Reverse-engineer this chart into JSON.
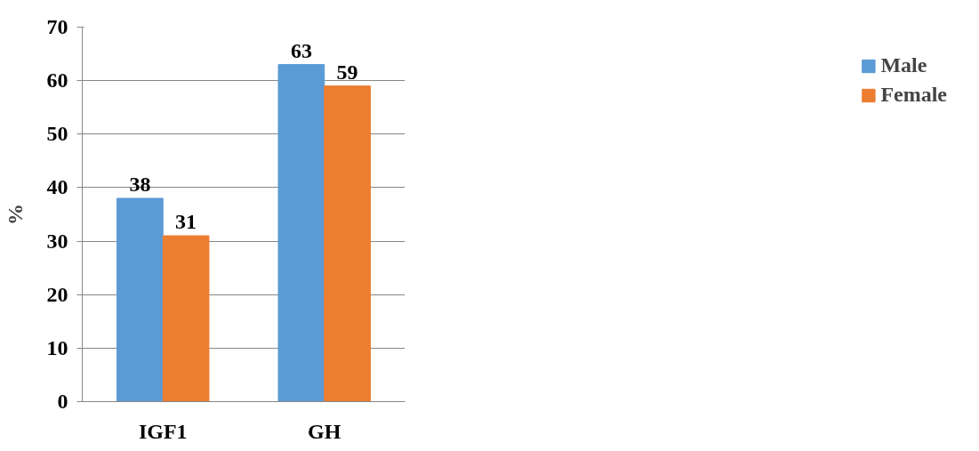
{
  "chart_data": {
    "type": "bar",
    "ylabel": "%",
    "categories": [
      "IGF1",
      "GH"
    ],
    "series": [
      {
        "name": "Male",
        "color": "#5b9bd5",
        "values": [
          38,
          63
        ]
      },
      {
        "name": "Female",
        "color": "#ed7d31",
        "values": [
          31,
          59
        ]
      }
    ],
    "ylim": [
      0,
      70
    ],
    "yticks": [
      0,
      10,
      20,
      30,
      40,
      50,
      60,
      70
    ],
    "grid": "y",
    "legend": "right",
    "data_labels": true
  }
}
